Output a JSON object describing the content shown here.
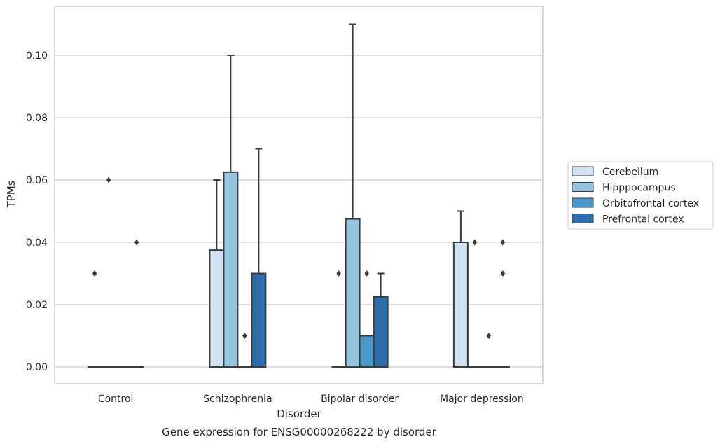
{
  "chart_data": {
    "type": "box",
    "title": "Gene expression for ENSG00000268222 by disorder",
    "xlabel": "Disorder",
    "ylabel": "TPMs",
    "ylim": [
      -0.0055,
      0.116
    ],
    "yticks": [
      0.0,
      0.02,
      0.04,
      0.06,
      0.08,
      0.1
    ],
    "ytick_labels": [
      "0.00",
      "0.02",
      "0.04",
      "0.06",
      "0.08",
      "0.10"
    ],
    "categories": [
      "Control",
      "Schizophrenia",
      "Bipolar disorder",
      "Major depression"
    ],
    "grid": "horizontal",
    "legend_position": "right",
    "series": [
      {
        "name": "Cerebellum",
        "color": "#d0e1f2",
        "boxes": [
          {
            "q1": 0,
            "median": 0,
            "q3": 0,
            "whisker_low": 0,
            "whisker_high": 0,
            "outliers": [
              0.03
            ]
          },
          {
            "q1": 0,
            "median": 0,
            "q3": 0.0375,
            "whisker_low": 0,
            "whisker_high": 0.06,
            "outliers": []
          },
          {
            "q1": 0,
            "median": 0,
            "q3": 0,
            "whisker_low": 0,
            "whisker_high": 0,
            "outliers": [
              0.03
            ]
          },
          {
            "q1": 0,
            "median": 0,
            "q3": 0.04,
            "whisker_low": 0,
            "whisker_high": 0.05,
            "outliers": []
          }
        ]
      },
      {
        "name": "Hipppocampus",
        "color": "#94c4df",
        "boxes": [
          {
            "q1": 0,
            "median": 0,
            "q3": 0,
            "whisker_low": 0,
            "whisker_high": 0,
            "outliers": [
              0.06
            ]
          },
          {
            "q1": 0,
            "median": 0,
            "q3": 0.0625,
            "whisker_low": 0,
            "whisker_high": 0.1,
            "outliers": []
          },
          {
            "q1": 0,
            "median": 0,
            "q3": 0.0475,
            "whisker_low": 0,
            "whisker_high": 0.11,
            "outliers": []
          },
          {
            "q1": 0,
            "median": 0,
            "q3": 0,
            "whisker_low": 0,
            "whisker_high": 0,
            "outliers": [
              0.04
            ]
          }
        ]
      },
      {
        "name": "Orbitofrontal cortex",
        "color": "#4a98c9",
        "boxes": [
          {
            "q1": 0,
            "median": 0,
            "q3": 0,
            "whisker_low": 0,
            "whisker_high": 0,
            "outliers": []
          },
          {
            "q1": 0,
            "median": 0,
            "q3": 0,
            "whisker_low": 0,
            "whisker_high": 0,
            "outliers": [
              0.01
            ]
          },
          {
            "q1": 0,
            "median": 0,
            "q3": 0.01,
            "whisker_low": 0,
            "whisker_high": 0.01,
            "outliers": [
              0.03
            ]
          },
          {
            "q1": 0,
            "median": 0,
            "q3": 0,
            "whisker_low": 0,
            "whisker_high": 0,
            "outliers": [
              0.01
            ]
          }
        ]
      },
      {
        "name": "Prefrontal cortex",
        "color": "#2d6da9",
        "boxes": [
          {
            "q1": 0,
            "median": 0,
            "q3": 0,
            "whisker_low": 0,
            "whisker_high": 0,
            "outliers": [
              0.04
            ]
          },
          {
            "q1": 0,
            "median": 0,
            "q3": 0.03,
            "whisker_low": 0,
            "whisker_high": 0.07,
            "outliers": []
          },
          {
            "q1": 0,
            "median": 0,
            "q3": 0.0225,
            "whisker_low": 0,
            "whisker_high": 0.03,
            "outliers": []
          },
          {
            "q1": 0,
            "median": 0,
            "q3": 0,
            "whisker_low": 0,
            "whisker_high": 0,
            "outliers": [
              0.03,
              0.04
            ]
          }
        ]
      }
    ]
  }
}
